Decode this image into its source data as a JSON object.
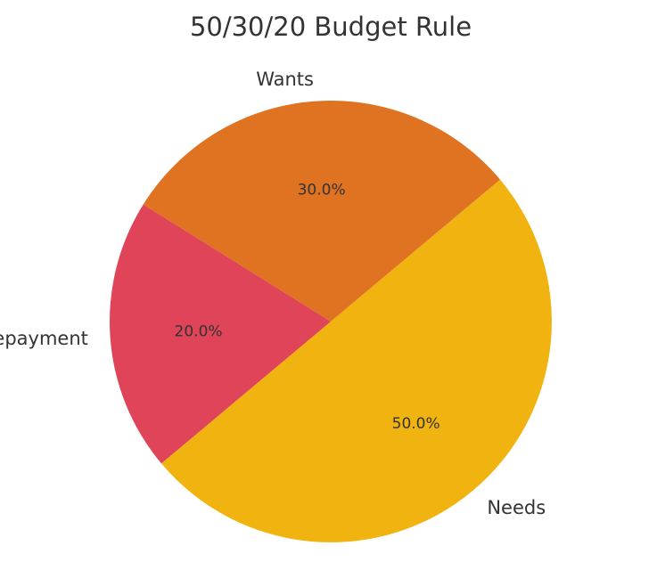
{
  "chart_data": {
    "type": "pie",
    "title": "50/30/20 Budget Rule",
    "categories": [
      "Needs",
      "Wants",
      "Savings/Debt Repayment"
    ],
    "values": [
      50,
      30,
      20
    ],
    "percent_labels": [
      "50.0%",
      "30.0%",
      "20.0%"
    ],
    "colors": [
      "#f0b30f",
      "#e07322",
      "#df4459"
    ]
  }
}
